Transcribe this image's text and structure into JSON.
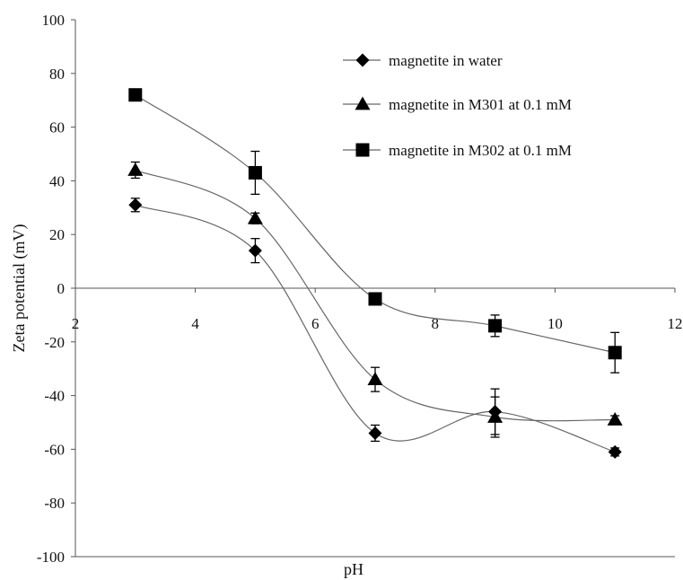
{
  "chart_data": {
    "type": "line",
    "title": "",
    "xlabel": "pH",
    "ylabel": "Zeta potential (mV)",
    "xlim": [
      2,
      12
    ],
    "ylim": [
      -100,
      100
    ],
    "x_ticks": [
      2,
      4,
      6,
      8,
      10,
      12
    ],
    "y_ticks": [
      100,
      80,
      60,
      40,
      20,
      0,
      -20,
      -40,
      -60,
      -80,
      -100
    ],
    "grid": false,
    "legend_position": "top-right",
    "series": [
      {
        "name": "magnetite in water",
        "marker": "diamond",
        "color": "#000000",
        "x": [
          3.0,
          5.0,
          7.0,
          9.0,
          11.0
        ],
        "y": [
          31,
          14,
          -54,
          -46,
          -61
        ],
        "error": [
          2.5,
          4.5,
          3.0,
          8.5,
          1.5
        ]
      },
      {
        "name": "magnetite in M301 at 0.1 mM",
        "marker": "triangle",
        "color": "#000000",
        "x": [
          3.0,
          5.0,
          7.0,
          9.0,
          11.0
        ],
        "y": [
          44,
          26,
          -34,
          -48,
          -49
        ],
        "error": [
          3.0,
          2.0,
          4.5,
          7.5,
          1.5
        ]
      },
      {
        "name": "magnetite in M302 at 0.1 mM",
        "marker": "square",
        "color": "#000000",
        "x": [
          3.0,
          5.0,
          7.0,
          9.0,
          11.0
        ],
        "y": [
          72,
          43,
          -4,
          -14,
          -24
        ],
        "error": [
          2.0,
          8.0,
          1.0,
          4.0,
          7.5
        ]
      }
    ]
  }
}
